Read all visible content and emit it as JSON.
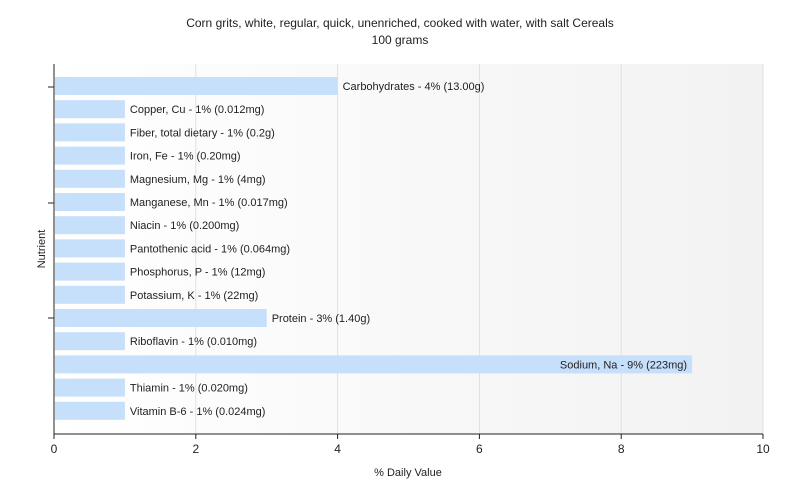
{
  "chart_data": {
    "type": "bar",
    "orientation": "horizontal",
    "title": "Corn grits, white, regular, quick, unenriched, cooked with water, with salt Cereals",
    "subtitle": "100 grams",
    "xlabel": "% Daily Value",
    "ylabel": "Nutrient",
    "xlim": [
      0,
      10
    ],
    "xticks": [
      0,
      2,
      4,
      6,
      8,
      10
    ],
    "grid": true,
    "bar_color": "#c6dffb",
    "categories": [
      "Carbohydrates",
      "Copper, Cu",
      "Fiber, total dietary",
      "Iron, Fe",
      "Magnesium, Mg",
      "Manganese, Mn",
      "Niacin",
      "Pantothenic acid",
      "Phosphorus, P",
      "Potassium, K",
      "Protein",
      "Riboflavin",
      "Sodium, Na",
      "Thiamin",
      "Vitamin B-6"
    ],
    "values": [
      4,
      1,
      1,
      1,
      1,
      1,
      1,
      1,
      1,
      1,
      3,
      1,
      9,
      1,
      1
    ],
    "labels": [
      "Carbohydrates - 4% (13.00g)",
      "Copper, Cu - 1% (0.012mg)",
      "Fiber, total dietary - 1% (0.2g)",
      "Iron, Fe - 1% (0.20mg)",
      "Magnesium, Mg - 1% (4mg)",
      "Manganese, Mn - 1% (0.017mg)",
      "Niacin - 1% (0.200mg)",
      "Pantothenic acid - 1% (0.064mg)",
      "Phosphorus, P - 1% (12mg)",
      "Potassium, K - 1% (22mg)",
      "Protein - 3% (1.40g)",
      "Riboflavin - 1% (0.010mg)",
      "Sodium, Na - 9% (223mg)",
      "Thiamin - 1% (0.020mg)",
      "Vitamin B-6 - 1% (0.024mg)"
    ]
  }
}
